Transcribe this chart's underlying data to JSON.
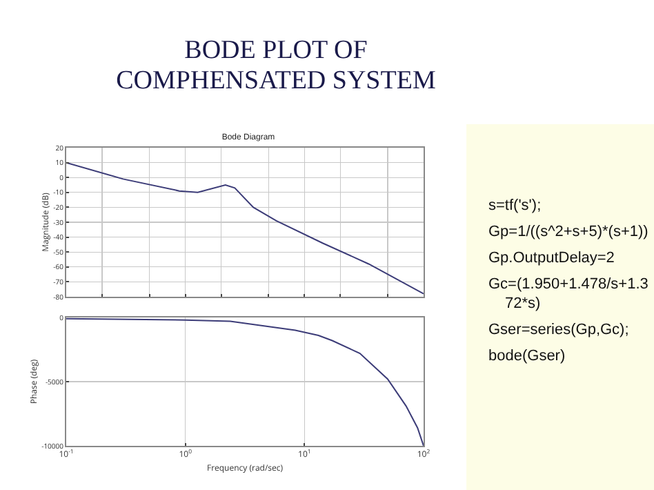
{
  "chart_data": [
    {
      "type": "line",
      "title": "BODE PLOT OF COMPHENSATED SYSTEM",
      "subtitle": "Bode Diagram",
      "ylabel": "Magnitude (dB)",
      "x": [
        0.1,
        0.3,
        0.89,
        1.27,
        2.17,
        2.6,
        3.72,
        5.8,
        14.2,
        34.6,
        100
      ],
      "series": [
        {
          "color": "#3c3c78",
          "values": [
            10,
            -1,
            -9,
            -10,
            -5,
            -7,
            -20,
            -29,
            -44,
            -58,
            -78
          ]
        }
      ],
      "xlim": [
        0.1,
        100
      ],
      "ylim": [
        -80,
        20
      ],
      "yticks": [
        -80,
        -70,
        -60,
        -50,
        -40,
        -30,
        -20,
        -10,
        0,
        10,
        20
      ],
      "log": "x",
      "grid": true,
      "tick_labels": "y"
    },
    {
      "type": "line",
      "xlabel": "Frequency (rad/sec)",
      "ylabel": "Phase (deg)",
      "x": [
        0.1,
        1,
        2.38,
        8.36,
        13.1,
        17.1,
        29.2,
        49.9,
        71.3,
        89,
        100
      ],
      "series": [
        {
          "color": "#3c3c78",
          "values": [
            -100,
            -200,
            -300,
            -1000,
            -1400,
            -1800,
            -2800,
            -4800,
            -6900,
            -8600,
            -10000
          ]
        }
      ],
      "xlim": [
        0.1,
        100
      ],
      "xticks": [
        {
          "value": 0.1,
          "label": "10$^{-1}$"
        },
        {
          "value": 1,
          "label": "10$^{0}$"
        },
        {
          "value": 10,
          "label": "10$^{1}$"
        },
        {
          "value": 100,
          "label": "10$^{2}$"
        }
      ],
      "ylim": [
        -10000,
        0
      ],
      "yticks": [
        -10000,
        -5000,
        0
      ],
      "log": "x",
      "grid": true
    },
    {
      "type": "other",
      "annotations": [
        "s=tf('s');",
        "Gp=1/((s^2+s+5)*(s+1))",
        "Gp.OutputDelay=2",
        "Gc=(1.950+1.478/s+1.372*s)",
        "Gser=series(Gp,Gc);",
        "bode(Gser)"
      ]
    }
  ]
}
